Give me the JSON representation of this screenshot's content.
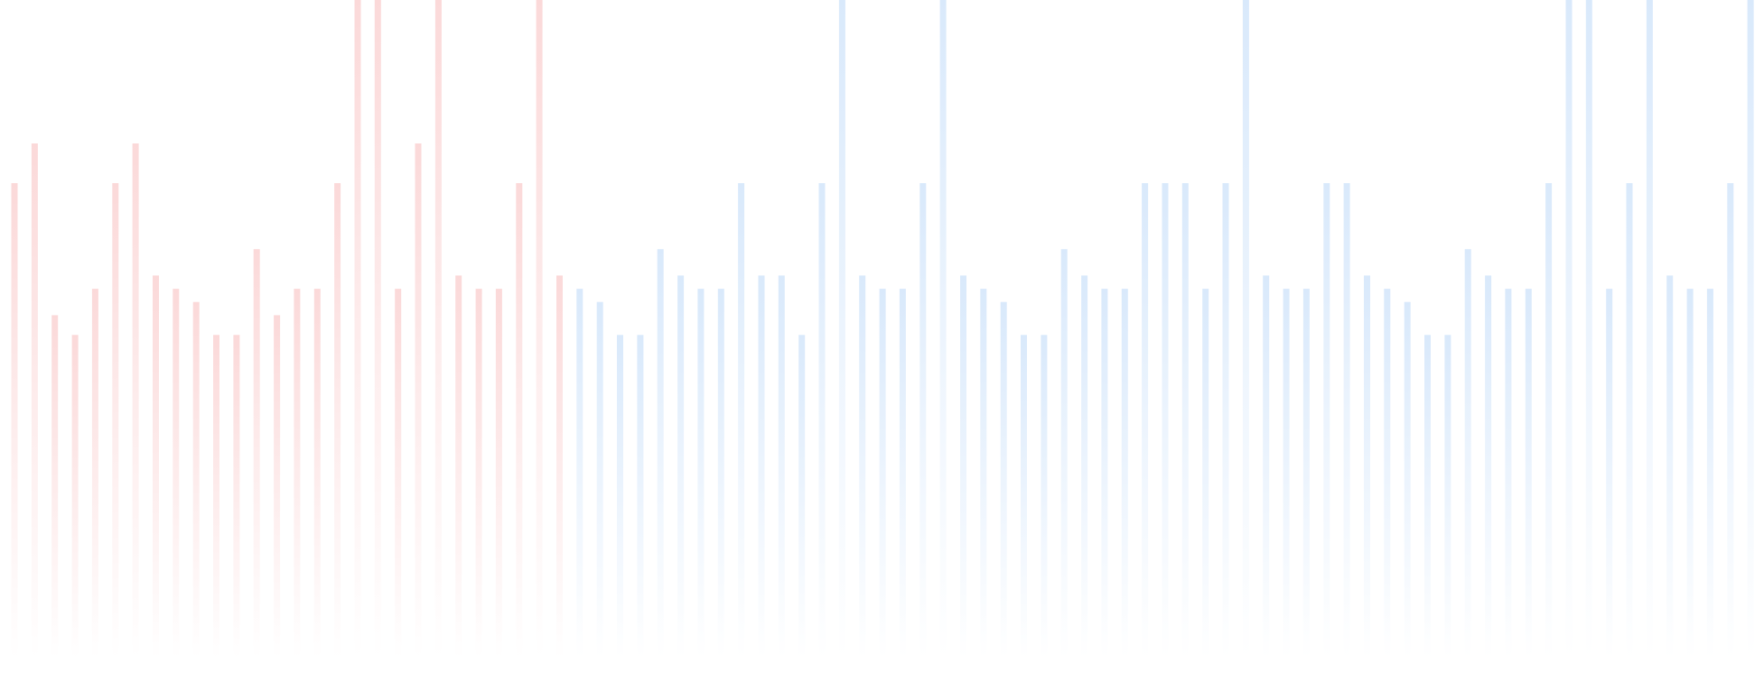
{
  "background_color": "#ffffff",
  "bars": {
    "fade_to": "#ffffff",
    "groups": [
      {
        "color": "#fbd9d9",
        "levels": [
          0.72,
          0.78,
          0.52,
          0.49,
          0.56,
          0.72,
          0.78,
          0.58,
          0.56,
          0.54,
          0.49,
          0.49,
          0.62,
          0.52,
          0.56,
          0.56,
          0.72,
          1.0,
          1.0,
          0.56,
          0.78,
          1.0,
          0.58,
          0.56,
          0.56,
          0.72,
          1.0,
          0.58
        ]
      },
      {
        "color": "#d9e9fb",
        "levels": [
          0.56,
          0.54,
          0.49,
          0.49,
          0.62,
          0.58,
          0.56,
          0.56,
          0.72,
          0.58,
          0.58,
          0.49,
          0.72,
          1.0,
          0.58,
          0.56,
          0.56,
          0.72,
          1.0,
          0.58,
          0.56,
          0.54,
          0.49,
          0.49,
          0.62,
          0.58,
          0.56,
          0.56,
          0.72,
          0.72,
          0.72,
          0.56,
          0.72,
          1.0,
          0.58,
          0.56,
          0.56,
          0.72,
          0.72,
          0.58,
          0.56,
          0.54,
          0.49,
          0.49,
          0.62,
          0.58,
          0.56,
          0.56,
          0.72,
          1.0,
          1.0,
          0.56,
          0.72,
          1.0,
          0.58,
          0.56,
          0.56,
          0.72,
          1.0,
          0.58
        ]
      }
    ]
  }
}
